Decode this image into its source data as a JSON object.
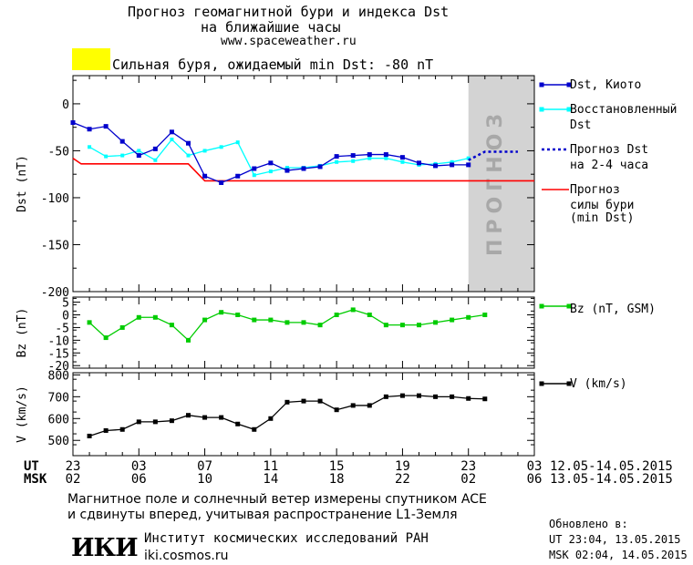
{
  "header": {
    "title_line1": "Прогноз геомагнитной бури и индекса Dst",
    "title_line2": "на ближайшие часы",
    "site": "www.spaceweather.ru"
  },
  "alert": {
    "color": "#ffff00",
    "text": "Сильная буря, ожидаемый min Dst: -80 nT"
  },
  "forecast_band_label": "ПРОГНОЗ",
  "colors": {
    "dst_kyoto": "#0000cc",
    "dst_restored": "#00ffff",
    "forecast": "#0000cc",
    "storm": "#ff0000",
    "bz": "#00cc00",
    "v": "#000000",
    "forecast_band": "#d3d3d3"
  },
  "legend": {
    "dst_kyoto": "Dst, Киото",
    "restored_1": "Восстановленный",
    "restored_2": "Dst",
    "forecast_1": "Прогноз Dst",
    "forecast_2": "на 2-4 часа",
    "storm_1": "Прогноз",
    "storm_2": "силы бури",
    "storm_3": "(min Dst)",
    "bz": "Bz (nT, GSM)",
    "v": "V (km/s)"
  },
  "chart_data": [
    {
      "type": "line",
      "ylabel": "Dst (nT)",
      "ylim": [
        -200,
        30
      ],
      "yticks": [
        0,
        -50,
        -100,
        -150,
        -200
      ],
      "ytick_labels": [
        "0",
        "-50",
        "-100",
        "-150",
        "-200"
      ],
      "xlim": [
        23,
        51
      ],
      "series": [
        {
          "name": "Dst, Киото",
          "x": [
            23,
            24,
            25,
            26,
            27,
            28,
            29,
            30,
            31,
            32,
            33,
            34,
            35,
            36,
            37,
            38,
            39,
            40,
            41,
            42,
            43,
            44,
            45,
            46,
            47
          ],
          "values": [
            -20,
            -27,
            -24,
            -40,
            -55,
            -48,
            -30,
            -42,
            -77,
            -84,
            -77,
            -69,
            -63,
            -71,
            -69,
            -67,
            -56,
            -55,
            -54,
            -54,
            -57,
            -63,
            -66,
            -65,
            -65
          ]
        },
        {
          "name": "Восстановленный Dst",
          "x": [
            24,
            25,
            26,
            27,
            28,
            29,
            30,
            31,
            32,
            33,
            34,
            35,
            36,
            37,
            38,
            39,
            40,
            41,
            42,
            43,
            44,
            45,
            46,
            47
          ],
          "values": [
            -46,
            -56,
            -55,
            -50,
            -60,
            -38,
            -55,
            -50,
            -46,
            -41,
            -76,
            -72,
            -68,
            -68,
            -66,
            -62,
            -61,
            -58,
            -58,
            -62,
            -65,
            -64,
            -62,
            -58
          ]
        },
        {
          "name": "Прогноз Dst на 2-4 часа",
          "x": [
            47,
            48,
            49,
            50
          ],
          "values": [
            -60,
            -51,
            -51,
            -51
          ]
        },
        {
          "name": "Прогноз силы бури (min Dst)",
          "x": [
            23,
            23.5,
            30,
            31,
            51
          ],
          "values": [
            -58,
            -64,
            -64,
            -82,
            -82
          ]
        }
      ]
    },
    {
      "type": "line",
      "ylabel": "Bz (nT)",
      "ylim": [
        -21,
        7
      ],
      "yticks": [
        5,
        0,
        -5,
        -10,
        -15,
        -20
      ],
      "ytick_labels": [
        "5",
        "0",
        "-5",
        "-10",
        "-15",
        "-20"
      ],
      "series": [
        {
          "name": "Bz (nT, GSM)",
          "x": [
            24,
            25,
            26,
            27,
            28,
            29,
            30,
            31,
            32,
            33,
            34,
            35,
            36,
            37,
            38,
            39,
            40,
            41,
            42,
            43,
            44,
            45,
            46,
            47,
            48
          ],
          "values": [
            -3,
            -9,
            -5,
            -1,
            -1,
            -4,
            -10,
            -2,
            1,
            0,
            -2,
            -2,
            -3,
            -3,
            -4,
            0,
            2,
            0,
            -4,
            -4,
            -4,
            -3,
            -2,
            -1,
            0
          ]
        }
      ]
    },
    {
      "type": "line",
      "ylabel": "V (km/s)",
      "ylim": [
        430,
        810
      ],
      "yticks": [
        800,
        700,
        600,
        500
      ],
      "ytick_labels": [
        "800",
        "700",
        "600",
        "500"
      ],
      "series": [
        {
          "name": "V (km/s)",
          "x": [
            24,
            25,
            26,
            27,
            28,
            29,
            30,
            31,
            32,
            33,
            34,
            35,
            36,
            37,
            38,
            39,
            40,
            41,
            42,
            43,
            44,
            45,
            46,
            47,
            48
          ],
          "values": [
            520,
            545,
            550,
            585,
            585,
            590,
            615,
            605,
            605,
            575,
            550,
            600,
            675,
            680,
            680,
            640,
            660,
            660,
            700,
            705,
            705,
            700,
            700,
            692,
            690
          ]
        }
      ]
    }
  ],
  "xaxis": {
    "ut_label": "UT",
    "msk_label": "MSK",
    "ut_ticks": [
      "23",
      "03",
      "07",
      "11",
      "15",
      "19",
      "23",
      "03"
    ],
    "msk_ticks": [
      "02",
      "06",
      "10",
      "14",
      "18",
      "22",
      "02",
      "06"
    ],
    "ut_range": "12.05-14.05.2015",
    "msk_range": "13.05-14.05.2015"
  },
  "footer": {
    "note_line1": "Магнитное поле и солнечный ветер измерены спутником ACE",
    "note_line2": "и сдвинуты вперед, учитывая распространение L1-Земля",
    "updated_label": "Обновлено в:",
    "updated_ut": "UT  23:04, 13.05.2015",
    "updated_msk": "MSK 02:04, 14.05.2015",
    "logo": "ИКИ",
    "institute": "Институт космических исследований РАН",
    "institute_url": "iki.cosmos.ru"
  }
}
